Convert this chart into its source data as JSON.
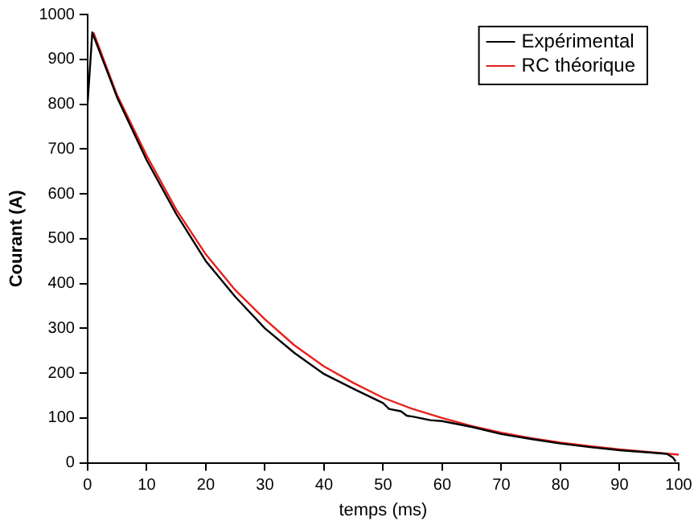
{
  "chart_data": {
    "type": "line",
    "xlabel": "temps (ms)",
    "ylabel": "Courant (A)",
    "xlim": [
      0,
      100
    ],
    "xticks": [
      0,
      10,
      20,
      30,
      40,
      50,
      60,
      70,
      80,
      90,
      100
    ],
    "ylim": [
      0,
      1000
    ],
    "yticks": [
      0,
      100,
      200,
      300,
      400,
      500,
      600,
      700,
      800,
      900,
      1000
    ],
    "grid": false,
    "legend": "top right",
    "marker": "none",
    "line_style": "solid",
    "series": [
      {
        "name": "Expérimental",
        "color": "#000000",
        "x": [
          0,
          0.8,
          5,
          10,
          15,
          20,
          25,
          30,
          35,
          40,
          45,
          50,
          51,
          53,
          54,
          55,
          58,
          60,
          65,
          70,
          75,
          80,
          85,
          90,
          95,
          98,
          99,
          99.5
        ],
        "values": [
          800,
          960,
          815,
          675,
          555,
          450,
          370,
          300,
          245,
          198,
          165,
          133,
          120,
          115,
          105,
          103,
          95,
          93,
          80,
          64,
          53,
          43,
          35,
          28,
          23,
          20,
          12,
          3
        ]
      },
      {
        "name": "RC théorique",
        "color": "#e8201c",
        "x": [
          1,
          5,
          10,
          15,
          20,
          25,
          30,
          35,
          40,
          45,
          50,
          55,
          60,
          65,
          70,
          75,
          80,
          85,
          90,
          95,
          100
        ],
        "values": [
          960,
          820,
          685,
          565,
          465,
          385,
          320,
          262,
          215,
          178,
          145,
          120,
          100,
          82,
          67,
          55,
          45,
          37,
          30,
          24,
          18
        ]
      }
    ]
  }
}
